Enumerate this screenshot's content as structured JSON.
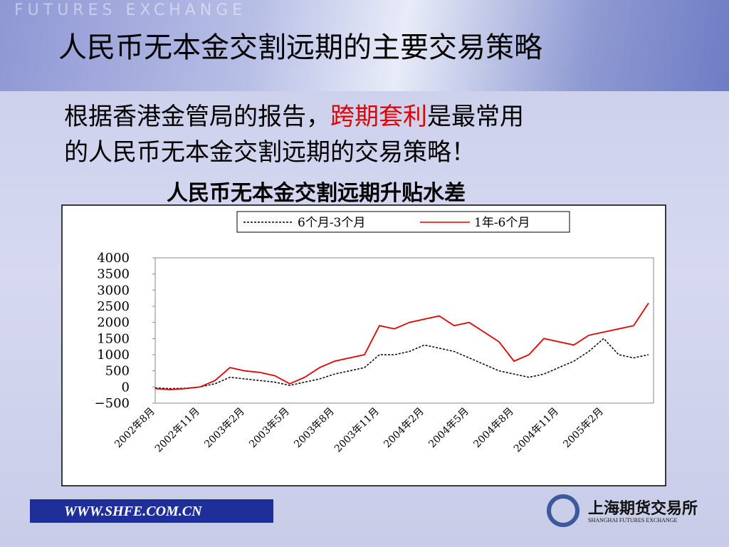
{
  "slide": {
    "banner": "FUTURES EXCHANGE",
    "title": "人民币无本金交割远期的主要交易策略",
    "body_line1": [
      "根据香港金管局的报告，",
      "跨期套利",
      "是最常用"
    ],
    "body_line2": "的人民币无本金交割远期的交易策略！",
    "footer_url": "WWW.SHFE.COM.CN",
    "logo_cn": "上海期货交易所",
    "logo_en": "SHANGHAI FUTURES EXCHANGE"
  },
  "chart_data": {
    "type": "line",
    "title": "人民币无本金交割远期升贴水差",
    "categories": [
      "2002年8月",
      null,
      null,
      "2002年11月",
      null,
      null,
      "2003年2月",
      null,
      null,
      "2003年5月",
      null,
      null,
      "2003年8月",
      null,
      null,
      "2003年11月",
      null,
      null,
      "2004年2月",
      null,
      null,
      "2004年5月",
      null,
      null,
      "2004年8月",
      null,
      null,
      "2004年11月",
      null,
      null,
      "2005年2月",
      null,
      null,
      null
    ],
    "series": [
      {
        "name": "6个月-3个月",
        "color": "#000000",
        "dash": true,
        "values": [
          -30,
          -50,
          -40,
          0,
          100,
          300,
          250,
          200,
          150,
          50,
          150,
          250,
          400,
          500,
          600,
          1000,
          1000,
          1100,
          1300,
          1200,
          1100,
          900,
          700,
          500,
          400,
          300,
          400,
          600,
          800,
          1100,
          1500,
          1000,
          900,
          1000
        ]
      },
      {
        "name": "1年-6个月",
        "color": "#e00000",
        "dash": false,
        "values": [
          -50,
          -80,
          -50,
          0,
          200,
          600,
          500,
          450,
          350,
          100,
          300,
          600,
          800,
          900,
          1000,
          1900,
          1800,
          2000,
          2100,
          2200,
          1900,
          2000,
          1700,
          1400,
          800,
          1000,
          1500,
          1400,
          1300,
          1600,
          1700,
          1800,
          1900,
          2600
        ]
      }
    ],
    "ylim": [
      -500,
      4000
    ],
    "yticks": [
      {
        "value": -500,
        "label": "−500"
      },
      0,
      500,
      1000,
      1500,
      2000,
      2500,
      3000,
      3500,
      4000
    ],
    "grid": false,
    "legend": "top"
  }
}
